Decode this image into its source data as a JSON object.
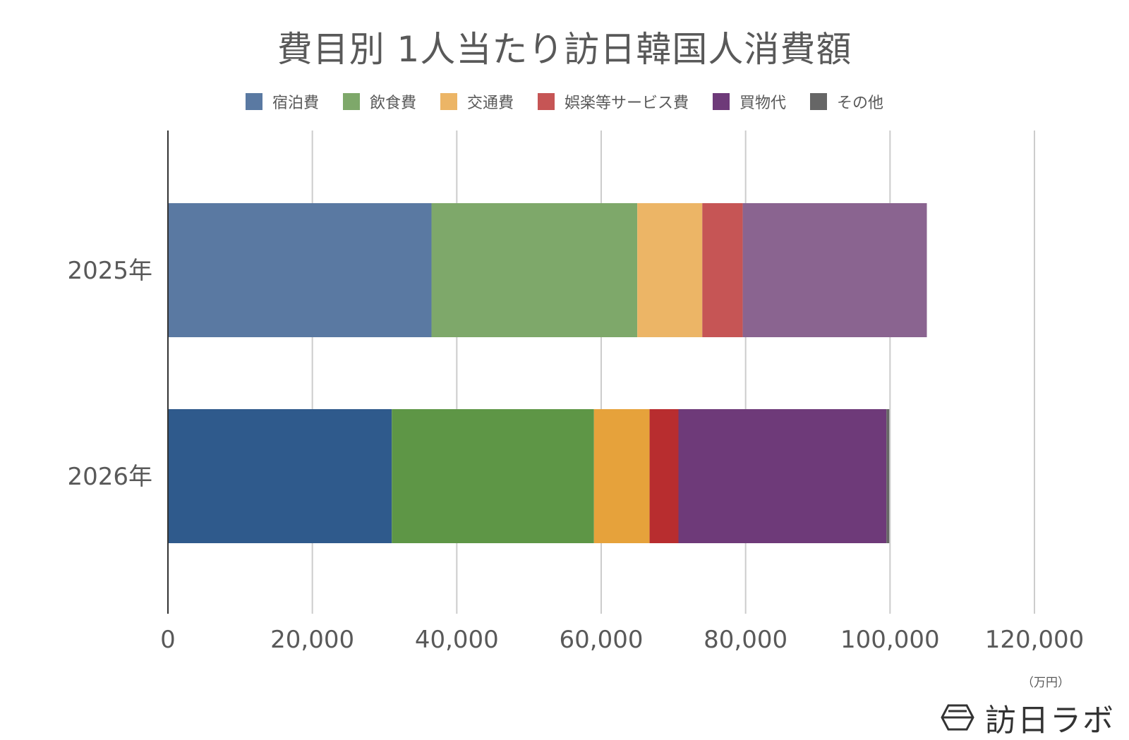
{
  "chart_data": {
    "type": "bar",
    "orientation": "horizontal",
    "stacked": true,
    "title": "費目別 1人当たり訪日韓国人消費額",
    "unit_label": "（万円）",
    "categories": [
      "2025年",
      "2026年"
    ],
    "series": [
      {
        "name": "宿泊費",
        "values": [
          36500,
          31000
        ],
        "colors": [
          "#5a79a2",
          "#2f5a8c"
        ]
      },
      {
        "name": "飲食費",
        "values": [
          28500,
          28000
        ],
        "colors": [
          "#7ea86a",
          "#5e9646"
        ]
      },
      {
        "name": "交通費",
        "values": [
          9000,
          7700
        ],
        "colors": [
          "#ecb566",
          "#e6a23b"
        ]
      },
      {
        "name": "娯楽等サービス費",
        "values": [
          5600,
          4000
        ],
        "colors": [
          "#c65555",
          "#b82d2f"
        ]
      },
      {
        "name": "買物代",
        "values": [
          25500,
          28800
        ],
        "colors": [
          "#8a6490",
          "#6e3a79"
        ]
      },
      {
        "name": "その他",
        "values": [
          0,
          400
        ],
        "colors": [
          "#666666",
          "#666666"
        ]
      }
    ],
    "legend_colors": [
      "#5a79a2",
      "#7ea86a",
      "#ecb566",
      "#c65555",
      "#6e3a79",
      "#666666"
    ],
    "xlim": [
      0,
      120000
    ],
    "xticks": [
      0,
      20000,
      40000,
      60000,
      80000,
      100000,
      120000
    ],
    "xtick_labels": [
      "0",
      "20,000",
      "40,000",
      "60,000",
      "80,000",
      "100,000",
      "120,000"
    ],
    "grid": true,
    "legend_position": "top"
  },
  "brand": {
    "text": "訪日ラボ",
    "icon": "hexagon-logo-icon"
  }
}
